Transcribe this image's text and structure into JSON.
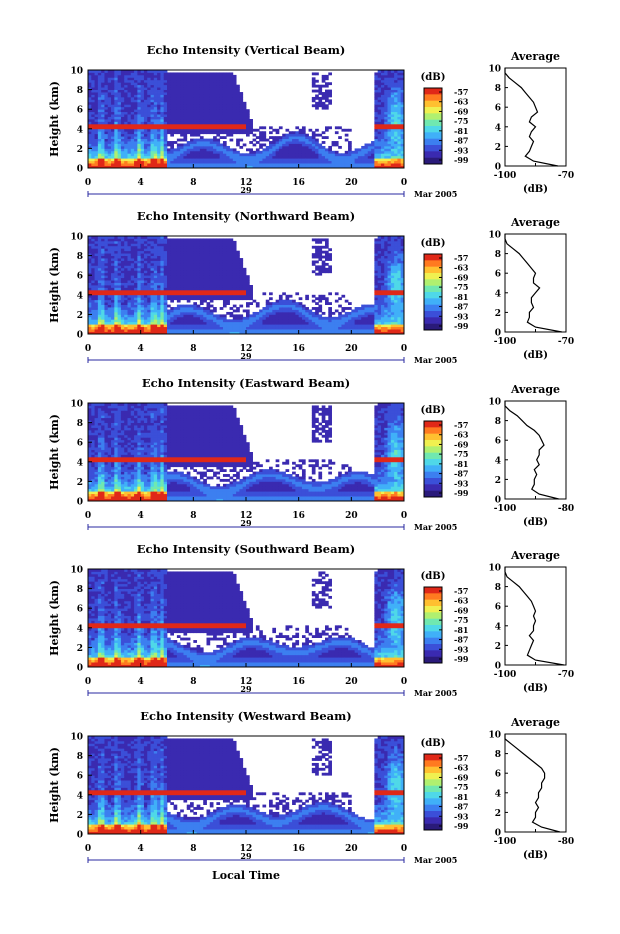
{
  "colorbar": {
    "unit": "(dB)",
    "tick_labels": [
      "-57",
      "-63",
      "-69",
      "-75",
      "-81",
      "-87",
      "-93",
      "-99"
    ],
    "colors": [
      "#ffffff",
      "#2a1a7a",
      "#3a2ab0",
      "#3b4fd8",
      "#3c7ff0",
      "#40b0f8",
      "#4fd8e8",
      "#70e8b0",
      "#b0f070",
      "#f0f050",
      "#ffc030",
      "#ff7a20",
      "#e02818"
    ]
  },
  "shared": {
    "ylabel": "Height (km)",
    "x_ticks": [
      "0",
      "4",
      "8",
      "12",
      "16",
      "20",
      "0"
    ],
    "day_label": "29",
    "month_label": "Mar 2005",
    "bottom_label": "Local Time",
    "avg_title": "Average",
    "avg_xlabel": "(dB)",
    "y_ticks": [
      "0",
      "2",
      "4",
      "6",
      "8",
      "10"
    ]
  },
  "chart_data": [
    {
      "type": "heatmap",
      "title": "Echo Intensity (Vertical Beam)",
      "x_range": [
        0,
        24
      ],
      "y_range": [
        0,
        10
      ],
      "colorbar_ticks": [
        -57,
        -63,
        -69,
        -75,
        -81,
        -87,
        -93,
        -99
      ],
      "average_profile": {
        "title": "Average",
        "xlabel": "(dB)",
        "x_ticks": [
          "-100",
          "-70"
        ],
        "xlim": [
          -100,
          -70
        ],
        "height": [
          0,
          0.5,
          1,
          1.5,
          2,
          2.5,
          3,
          3.5,
          4,
          4.5,
          5,
          5.5,
          6,
          6.5,
          7,
          7.5,
          8,
          8.5,
          9,
          9.5,
          10
        ],
        "db": [
          -74,
          -86,
          -90,
          -88,
          -87,
          -86,
          -88,
          -87,
          -85,
          -88,
          -87,
          -84,
          -85,
          -86,
          -88,
          -90,
          -92,
          -95,
          -98,
          -100,
          -100
        ]
      }
    },
    {
      "type": "heatmap",
      "title": "Echo Intensity (Northward Beam)",
      "x_range": [
        0,
        24
      ],
      "y_range": [
        0,
        10
      ],
      "colorbar_ticks": [
        -57,
        -63,
        -69,
        -75,
        -81,
        -87,
        -93,
        -99
      ],
      "average_profile": {
        "title": "Average",
        "xlabel": "(dB)",
        "x_ticks": [
          "-100",
          "-70"
        ],
        "xlim": [
          -100,
          -70
        ],
        "height": [
          0,
          0.5,
          1,
          1.5,
          2,
          2.5,
          3,
          3.5,
          4,
          4.5,
          5,
          5.5,
          6,
          6.5,
          7,
          7.5,
          8,
          8.5,
          9,
          9.5,
          10
        ],
        "db": [
          -72,
          -85,
          -89,
          -88,
          -88,
          -86,
          -87,
          -87,
          -85,
          -83,
          -86,
          -86,
          -85,
          -87,
          -89,
          -91,
          -93,
          -96,
          -99,
          -100,
          -100
        ]
      }
    },
    {
      "type": "heatmap",
      "title": "Echo Intensity (Eastward Beam)",
      "x_range": [
        0,
        24
      ],
      "y_range": [
        0,
        10
      ],
      "colorbar_ticks": [
        -57,
        -63,
        -69,
        -75,
        -81,
        -87,
        -93,
        -99
      ],
      "average_profile": {
        "title": "Average",
        "xlabel": "(dB)",
        "x_ticks": [
          "-100",
          "-80"
        ],
        "xlim": [
          -100,
          -75
        ],
        "height": [
          0,
          0.5,
          1,
          1.5,
          2,
          2.5,
          3,
          3.5,
          4,
          4.5,
          5,
          5.5,
          6,
          6.5,
          7,
          7.5,
          8,
          8.5,
          9,
          9.5,
          10
        ],
        "db": [
          -78,
          -86,
          -89,
          -88,
          -88,
          -87,
          -88,
          -86,
          -87,
          -86,
          -86,
          -84,
          -85,
          -86,
          -88,
          -91,
          -93,
          -95,
          -98,
          -100,
          -100
        ]
      }
    },
    {
      "type": "heatmap",
      "title": "Echo Intensity (Southward Beam)",
      "x_range": [
        0,
        24
      ],
      "y_range": [
        0,
        10
      ],
      "colorbar_ticks": [
        -57,
        -63,
        -69,
        -75,
        -81,
        -87,
        -93,
        -99
      ],
      "average_profile": {
        "title": "Average",
        "xlabel": "(dB)",
        "x_ticks": [
          "-100",
          "-70"
        ],
        "xlim": [
          -100,
          -70
        ],
        "height": [
          0,
          0.5,
          1,
          1.5,
          2,
          2.5,
          3,
          3.5,
          4,
          4.5,
          5,
          5.5,
          6,
          6.5,
          7,
          7.5,
          8,
          8.5,
          9,
          9.5,
          10
        ],
        "db": [
          -71,
          -85,
          -89,
          -88,
          -87,
          -86,
          -88,
          -86,
          -86,
          -85,
          -86,
          -85,
          -86,
          -87,
          -89,
          -91,
          -93,
          -96,
          -99,
          -100,
          -100
        ]
      }
    },
    {
      "type": "heatmap",
      "title": "Echo Intensity (Westward Beam)",
      "x_range": [
        0,
        24
      ],
      "y_range": [
        0,
        10
      ],
      "colorbar_ticks": [
        -57,
        -63,
        -69,
        -75,
        -81,
        -87,
        -93,
        -99
      ],
      "average_profile": {
        "title": "Average",
        "xlabel": "(dB)",
        "x_ticks": [
          "-100",
          "-80"
        ],
        "xlim": [
          -100,
          -80
        ],
        "height": [
          0,
          0.5,
          1,
          1.5,
          2,
          2.5,
          3,
          3.5,
          4,
          4.5,
          5,
          5.5,
          6,
          6.5,
          7,
          7.5,
          8,
          8.5,
          9,
          9.5,
          10
        ],
        "db": [
          -82,
          -88,
          -91,
          -90,
          -90,
          -89,
          -90,
          -89,
          -89,
          -88,
          -88,
          -87,
          -87,
          -88,
          -90,
          -92,
          -94,
          -96,
          -98,
          -100,
          -100
        ]
      }
    }
  ]
}
